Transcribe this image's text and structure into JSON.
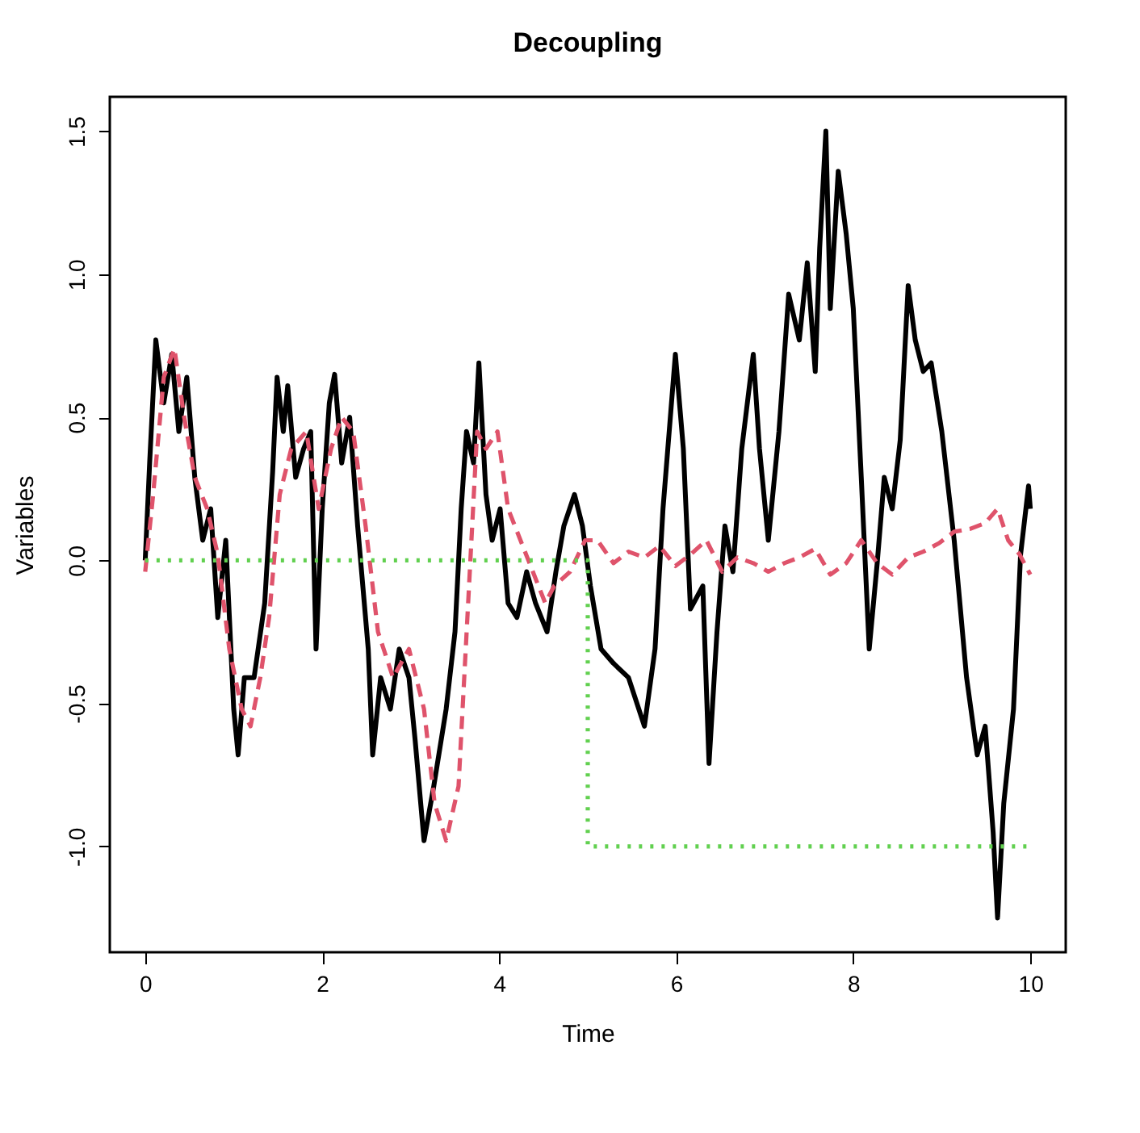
{
  "chart_data": {
    "type": "line",
    "title": "Decoupling",
    "xlabel": "Time",
    "ylabel": "Variables",
    "xlim": [
      -0.4,
      10.4
    ],
    "ylim": [
      -1.37,
      1.62
    ],
    "xticks": [
      0,
      2,
      4,
      6,
      8,
      10
    ],
    "yticks": [
      {
        "value": -1.0,
        "label": "-1.0"
      },
      -0.5,
      {
        "value": 0,
        "label": "0.0"
      },
      0.5,
      {
        "value": 1,
        "label": "1.0"
      },
      1.5
    ],
    "marker": "none",
    "series": [
      {
        "color": "#000000",
        "line_style": "solid",
        "x": [
          0,
          0.05,
          0.12,
          0.21,
          0.3,
          0.38,
          0.47,
          0.56,
          0.65,
          0.74,
          0.82,
          0.91,
          1.0,
          1.05,
          1.12,
          1.23,
          1.35,
          1.44,
          1.49,
          1.56,
          1.61,
          1.7,
          1.79,
          1.87,
          1.93,
          2.0,
          2.08,
          2.14,
          2.22,
          2.31,
          2.4,
          2.52,
          2.57,
          2.66,
          2.77,
          2.87,
          2.98,
          3.05,
          3.15,
          3.26,
          3.4,
          3.5,
          3.57,
          3.63,
          3.71,
          3.77,
          3.85,
          3.92,
          4.01,
          4.1,
          4.2,
          4.31,
          4.41,
          4.54,
          4.64,
          4.73,
          4.85,
          4.94,
          5.03,
          5.15,
          5.29,
          5.46,
          5.64,
          5.76,
          5.85,
          5.99,
          6.08,
          6.16,
          6.3,
          6.37,
          6.46,
          6.55,
          6.64,
          6.74,
          6.87,
          6.94,
          7.04,
          7.16,
          7.27,
          7.39,
          7.48,
          7.57,
          7.62,
          7.69,
          7.74,
          7.83,
          7.92,
          8.0,
          8.09,
          8.18,
          8.27,
          8.35,
          8.44,
          8.53,
          8.62,
          8.7,
          8.79,
          8.88,
          9.0,
          9.14,
          9.28,
          9.4,
          9.49,
          9.58,
          9.63,
          9.7,
          9.81,
          9.89,
          9.98,
          10.0
        ],
        "values": [
          0,
          0.34,
          0.77,
          0.55,
          0.72,
          0.45,
          0.64,
          0.29,
          0.07,
          0.18,
          -0.2,
          0.07,
          -0.52,
          -0.68,
          -0.41,
          -0.41,
          -0.15,
          0.31,
          0.64,
          0.45,
          0.61,
          0.29,
          0.39,
          0.45,
          -0.31,
          0.18,
          0.55,
          0.65,
          0.34,
          0.5,
          0.12,
          -0.31,
          -0.68,
          -0.41,
          -0.52,
          -0.31,
          -0.41,
          -0.63,
          -0.98,
          -0.79,
          -0.52,
          -0.25,
          0.18,
          0.45,
          0.34,
          0.69,
          0.23,
          0.07,
          0.18,
          -0.15,
          -0.2,
          -0.04,
          -0.15,
          -0.25,
          -0.04,
          0.12,
          0.23,
          0.12,
          -0.09,
          -0.31,
          -0.36,
          -0.41,
          -0.58,
          -0.31,
          0.18,
          0.72,
          0.39,
          -0.17,
          -0.09,
          -0.71,
          -0.25,
          0.12,
          -0.04,
          0.39,
          0.72,
          0.39,
          0.07,
          0.45,
          0.93,
          0.77,
          1.04,
          0.66,
          1.09,
          1.5,
          0.88,
          1.36,
          1.14,
          0.88,
          0.29,
          -0.31,
          -0.01,
          0.29,
          0.18,
          0.42,
          0.96,
          0.77,
          0.66,
          0.69,
          0.45,
          0.07,
          -0.41,
          -0.68,
          -0.58,
          -0.95,
          -1.25,
          -0.85,
          -0.52,
          0.02,
          0.26,
          0.18
        ]
      },
      {
        "color": "#df536b",
        "line_style": "dashed",
        "x": [
          0,
          0.09,
          0.21,
          0.33,
          0.44,
          0.56,
          0.7,
          0.82,
          0.95,
          1.09,
          1.19,
          1.3,
          1.4,
          1.52,
          1.65,
          1.82,
          1.96,
          2.1,
          2.22,
          2.35,
          2.49,
          2.63,
          2.8,
          2.98,
          3.15,
          3.27,
          3.4,
          3.54,
          3.64,
          3.75,
          3.85,
          3.98,
          4.1,
          4.24,
          4.38,
          4.52,
          4.62,
          4.8,
          4.97,
          5.11,
          5.29,
          5.46,
          5.64,
          5.81,
          5.99,
          6.16,
          6.34,
          6.52,
          6.69,
          6.87,
          7.04,
          7.22,
          7.39,
          7.57,
          7.74,
          7.92,
          8.09,
          8.27,
          8.44,
          8.62,
          8.79,
          8.97,
          9.14,
          9.32,
          9.49,
          9.63,
          9.75,
          9.88,
          10.0
        ],
        "values": [
          -0.04,
          0.23,
          0.64,
          0.74,
          0.5,
          0.29,
          0.18,
          0.02,
          -0.31,
          -0.52,
          -0.58,
          -0.41,
          -0.2,
          0.23,
          0.39,
          0.45,
          0.18,
          0.39,
          0.5,
          0.45,
          0.12,
          -0.25,
          -0.41,
          -0.31,
          -0.52,
          -0.85,
          -0.98,
          -0.79,
          -0.2,
          0.45,
          0.39,
          0.45,
          0.18,
          0.07,
          -0.04,
          -0.15,
          -0.09,
          -0.04,
          0.07,
          0.07,
          -0.01,
          0.03,
          0.01,
          0.05,
          -0.02,
          0.02,
          0.07,
          -0.04,
          0.01,
          -0.01,
          -0.04,
          -0.01,
          0.01,
          0.04,
          -0.05,
          -0.01,
          0.07,
          -0.01,
          -0.05,
          0.01,
          0.03,
          0.06,
          0.1,
          0.11,
          0.13,
          0.18,
          0.07,
          0.02,
          -0.05
        ]
      },
      {
        "color": "#61d04f",
        "line_style": "dotted",
        "x": [
          0,
          5,
          5,
          10
        ],
        "values": [
          0,
          0,
          -1,
          -1
        ]
      }
    ]
  }
}
